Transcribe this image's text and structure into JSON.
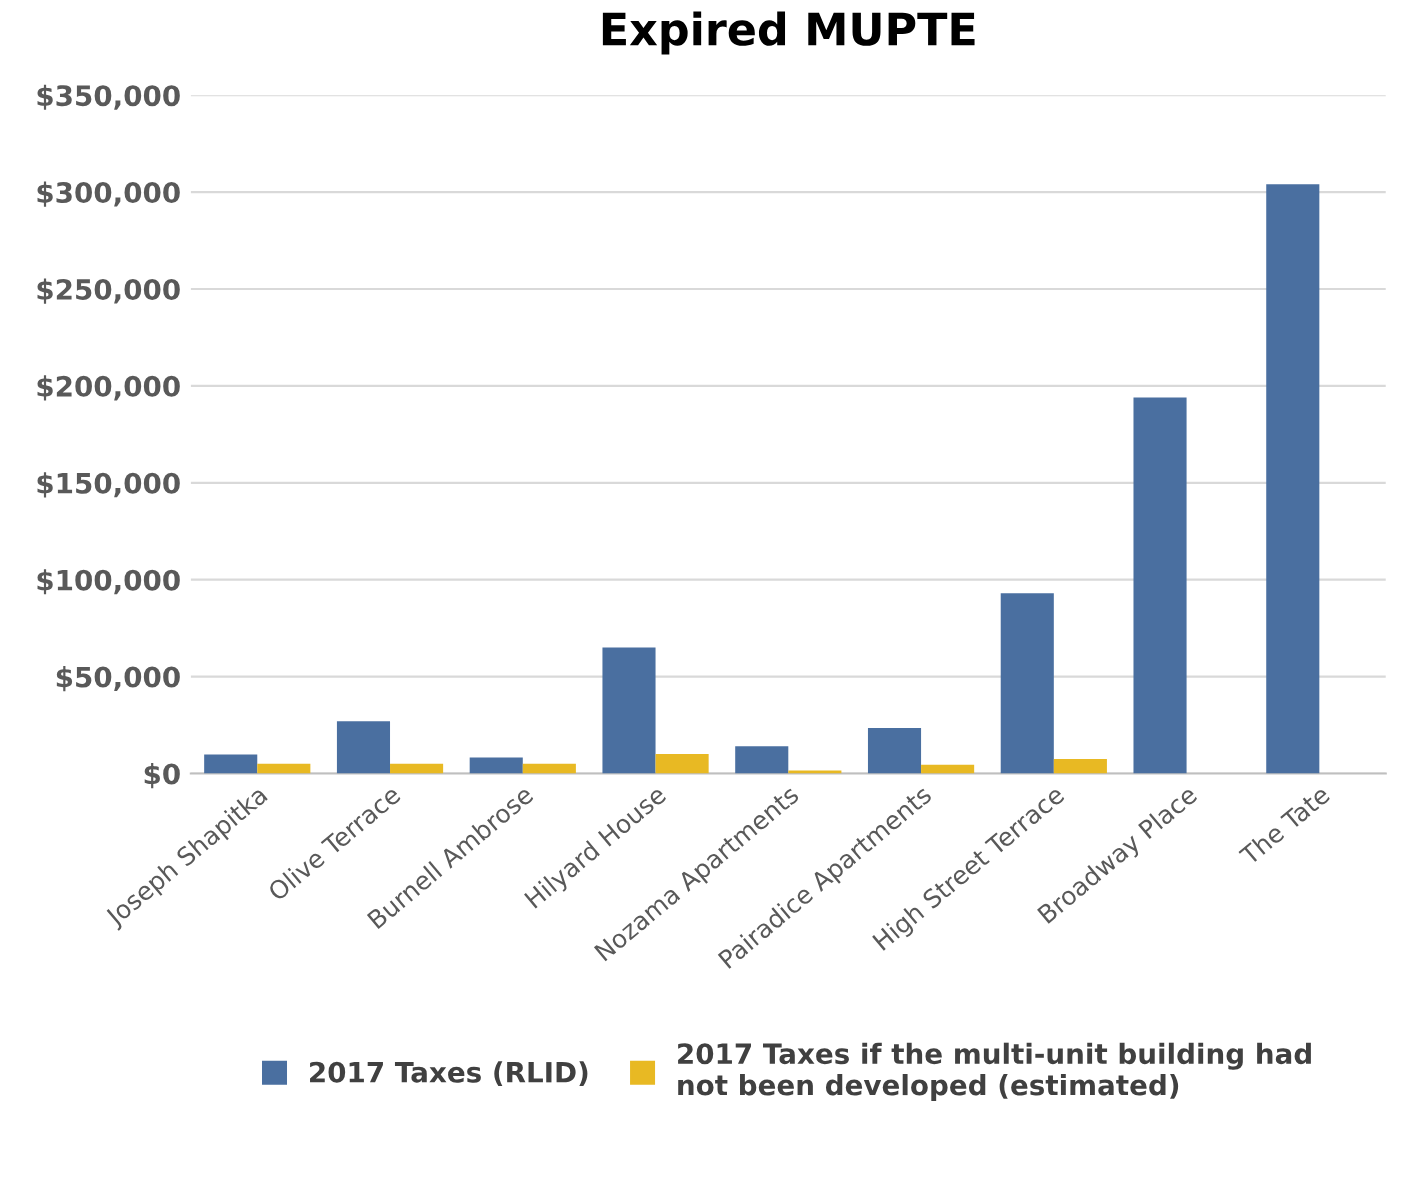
{
  "chart_data": {
    "type": "bar",
    "title": "Expired MUPTE",
    "categories": [
      "Joseph Shapitka",
      "Olive Terrace",
      "Burnell Ambrose",
      "Hilyard House",
      "Nozama Apartments",
      "Pairadice Apartments",
      "High Street Terrace",
      "Broadway Place",
      "The Tate"
    ],
    "series": [
      {
        "name": "2017 Taxes (RLID)",
        "color": "#4a6fa0",
        "values": [
          9800,
          27000,
          8300,
          65000,
          14000,
          23500,
          93000,
          194000,
          304000
        ]
      },
      {
        "name": "2017 Taxes if the multi-unit building had not been developed (estimated)",
        "color": "#e8b923",
        "values": [
          5000,
          5000,
          5000,
          10000,
          1500,
          4500,
          7500,
          null,
          null
        ]
      }
    ],
    "ylim": [
      0,
      350000
    ],
    "yticks": [
      {
        "value": 0,
        "label": "$0"
      },
      {
        "value": 50000,
        "label": "$50,000"
      },
      {
        "value": 100000,
        "label": "$100,000"
      },
      {
        "value": 150000,
        "label": "$150,000"
      },
      {
        "value": 200000,
        "label": "$200,000"
      },
      {
        "value": 250000,
        "label": "$250,000"
      },
      {
        "value": 300000,
        "label": "$300,000"
      },
      {
        "value": 350000,
        "label": "$350,000"
      }
    ],
    "grid": "y",
    "legend": "bottom"
  }
}
